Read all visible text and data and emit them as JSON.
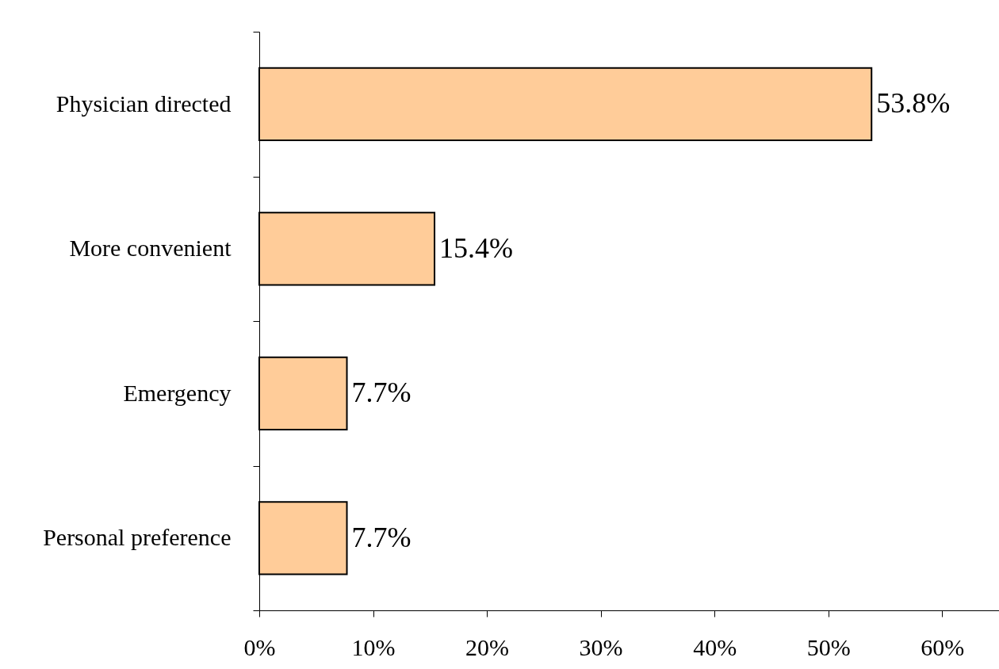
{
  "chart_data": {
    "type": "bar",
    "orientation": "horizontal",
    "categories": [
      "Physician directed",
      "More convenient",
      "Emergency",
      "Personal preference"
    ],
    "values": [
      53.8,
      15.4,
      7.7,
      7.7
    ],
    "value_labels": [
      "53.8%",
      "15.4%",
      "7.7%",
      "7.7%"
    ],
    "color": "#ffcc99",
    "xlim": [
      0,
      65
    ],
    "xticks": [
      {
        "value": 0,
        "label": "0%"
      },
      {
        "value": 10,
        "label": "10%"
      },
      {
        "value": 20,
        "label": "20%"
      },
      {
        "value": 30,
        "label": "30%"
      },
      {
        "value": 40,
        "label": "40%"
      },
      {
        "value": 50,
        "label": "50%"
      },
      {
        "value": 60,
        "label": "60%"
      }
    ],
    "grid": false
  }
}
